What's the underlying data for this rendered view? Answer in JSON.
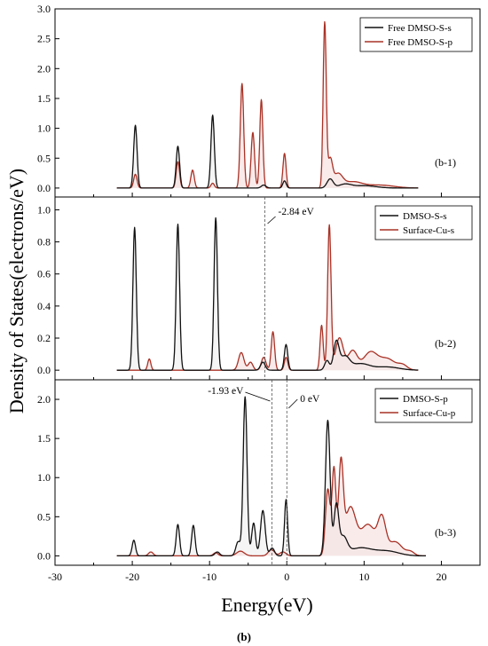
{
  "figure": {
    "ylabel": "Density of States(electrons/eV)",
    "xlabel": "Energy(eV)",
    "caption": "(b)",
    "colors": {
      "black": "#111111",
      "red": "#a93226",
      "fill_red": "#f6dede",
      "fill_black": "#e8e8e8"
    }
  },
  "chart_data": [
    {
      "type": "line",
      "panel_label": "(b-1)",
      "xlim": [
        -30,
        25
      ],
      "ylim": [
        -0.15,
        3.0
      ],
      "xticks": [
        -30,
        -20,
        -10,
        0,
        10,
        20
      ],
      "yticks": [
        0.0,
        0.5,
        1.0,
        1.5,
        2.0,
        2.5,
        3.0
      ],
      "ytick_labels": [
        "0.0",
        "0.5",
        "1.0",
        "1.5",
        "2.0",
        "2.5",
        "3.0"
      ],
      "x_range": [
        -22,
        17
      ],
      "legend_position": "top-right",
      "series": [
        {
          "name": "Free DMSO-S-s",
          "color": "#111111",
          "peaks": [
            [
              -19.6,
              1.05,
              0.22
            ],
            [
              -14.1,
              0.7,
              0.22
            ],
            [
              -9.6,
              1.22,
              0.22
            ],
            [
              -3.0,
              0.05,
              0.3
            ],
            [
              -0.3,
              0.12,
              0.22
            ],
            [
              5.6,
              0.15,
              0.4
            ],
            [
              7.5,
              0.06,
              0.8
            ],
            [
              10.0,
              0.04,
              1.5
            ]
          ]
        },
        {
          "name": "Free DMSO-S-p",
          "color": "#a93226",
          "peaks": [
            [
              -19.6,
              0.23,
              0.22
            ],
            [
              -14.1,
              0.44,
              0.22
            ],
            [
              -12.2,
              0.3,
              0.22
            ],
            [
              -9.6,
              0.08,
              0.22
            ],
            [
              -5.8,
              1.75,
              0.22
            ],
            [
              -4.4,
              0.93,
              0.22
            ],
            [
              -3.3,
              1.48,
              0.2
            ],
            [
              -0.3,
              0.58,
              0.2
            ],
            [
              4.9,
              2.75,
              0.2
            ],
            [
              5.6,
              0.45,
              0.3
            ],
            [
              6.6,
              0.22,
              0.6
            ],
            [
              8.5,
              0.1,
              1.2
            ],
            [
              12.0,
              0.05,
              1.8
            ]
          ]
        }
      ]
    },
    {
      "type": "line",
      "panel_label": "(b-2)",
      "xlim": [
        -30,
        25
      ],
      "ylim": [
        -0.06,
        1.08
      ],
      "xticks": [
        -30,
        -20,
        -10,
        0,
        10,
        20
      ],
      "yticks": [
        0.0,
        0.2,
        0.4,
        0.6,
        0.8,
        1.0
      ],
      "ytick_labels": [
        "0.0",
        "0.2",
        "0.4",
        "0.6",
        "0.8",
        "1.0"
      ],
      "x_range": [
        -22,
        17
      ],
      "legend_position": "top-right",
      "annotation": {
        "text": "-2.84 eV",
        "x": -2.84
      },
      "series": [
        {
          "name": "DMSO-S-s",
          "color": "#111111",
          "peaks": [
            [
              -19.7,
              0.89,
              0.22
            ],
            [
              -14.1,
              0.91,
              0.22
            ],
            [
              -9.2,
              0.95,
              0.22
            ],
            [
              -3.1,
              0.05,
              0.3
            ],
            [
              -0.1,
              0.16,
              0.22
            ],
            [
              5.2,
              0.06,
              0.3
            ],
            [
              6.4,
              0.17,
              0.35
            ],
            [
              7.5,
              0.08,
              0.6
            ],
            [
              9.5,
              0.04,
              1.2
            ],
            [
              13.0,
              0.02,
              1.5
            ]
          ]
        },
        {
          "name": "Surface-Cu-s",
          "color": "#a93226",
          "peaks": [
            [
              -17.8,
              0.07,
              0.2
            ],
            [
              -5.9,
              0.11,
              0.35
            ],
            [
              -4.7,
              0.05,
              0.3
            ],
            [
              -3.0,
              0.08,
              0.3
            ],
            [
              -1.8,
              0.24,
              0.22
            ],
            [
              -0.1,
              0.08,
              0.22
            ],
            [
              4.5,
              0.28,
              0.2
            ],
            [
              5.5,
              0.9,
              0.22
            ],
            [
              6.8,
              0.2,
              0.5
            ],
            [
              8.5,
              0.12,
              0.6
            ],
            [
              10.8,
              0.11,
              0.9
            ],
            [
              13.0,
              0.07,
              1.0
            ],
            [
              15.0,
              0.03,
              0.6
            ]
          ]
        }
      ]
    },
    {
      "type": "line",
      "panel_label": "(b-3)",
      "xlim": [
        -30,
        25
      ],
      "ylim": [
        -0.12,
        2.25
      ],
      "xticks": [
        -30,
        -20,
        -10,
        0,
        10,
        20
      ],
      "yticks": [
        0.0,
        0.5,
        1.0,
        1.5,
        2.0
      ],
      "ytick_labels": [
        "0.0",
        "0.5",
        "1.0",
        "1.5",
        "2.0"
      ],
      "x_range": [
        -22,
        18
      ],
      "legend_position": "top-right",
      "annotations": [
        {
          "text": "-1.93 eV",
          "x": -1.93
        },
        {
          "text": "0 eV",
          "x": 0
        }
      ],
      "series": [
        {
          "name": "DMSO-S-p",
          "color": "#111111",
          "peaks": [
            [
              -19.8,
              0.2,
              0.22
            ],
            [
              -14.1,
              0.4,
              0.22
            ],
            [
              -12.1,
              0.39,
              0.22
            ],
            [
              -9.0,
              0.05,
              0.3
            ],
            [
              -6.3,
              0.18,
              0.3
            ],
            [
              -5.4,
              2.03,
              0.25
            ],
            [
              -4.3,
              0.42,
              0.25
            ],
            [
              -3.1,
              0.58,
              0.3
            ],
            [
              -1.9,
              0.1,
              0.3
            ],
            [
              -0.1,
              0.72,
              0.2
            ],
            [
              5.3,
              1.73,
              0.3
            ],
            [
              6.4,
              0.62,
              0.3
            ],
            [
              7.3,
              0.22,
              0.5
            ],
            [
              9.5,
              0.1,
              1.5
            ],
            [
              13.0,
              0.06,
              1.5
            ]
          ]
        },
        {
          "name": "Surface-Cu-p",
          "color": "#a93226",
          "peaks": [
            [
              -17.6,
              0.05,
              0.3
            ],
            [
              -9.2,
              0.04,
              0.3
            ],
            [
              -6.0,
              0.06,
              0.5
            ],
            [
              -2.0,
              0.08,
              0.4
            ],
            [
              -0.5,
              0.05,
              0.4
            ],
            [
              5.3,
              0.85,
              0.3
            ],
            [
              6.1,
              1.1,
              0.25
            ],
            [
              7.0,
              1.12,
              0.3
            ],
            [
              8.2,
              0.6,
              0.7
            ],
            [
              10.5,
              0.4,
              1.0
            ],
            [
              12.3,
              0.42,
              0.5
            ],
            [
              14.0,
              0.18,
              0.9
            ],
            [
              16.0,
              0.05,
              0.5
            ]
          ]
        }
      ]
    }
  ]
}
